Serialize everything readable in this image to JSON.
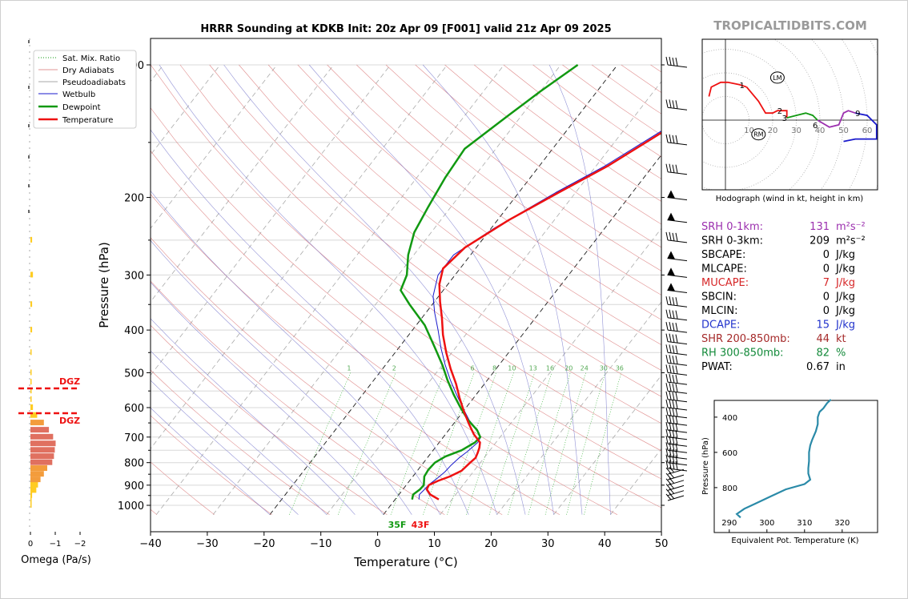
{
  "watermark": "TROPICALTIDBITS.COM",
  "skewt": {
    "title": "HRRR Sounding at KDKB Init: 20z Apr 09 [F001] valid 21z Apr 09 2025",
    "xlabel": "Temperature (°C)",
    "ylabel": "Pressure (hPa)",
    "xticks": [
      "−40",
      "−30",
      "−20",
      "−10",
      "0",
      "10",
      "20",
      "30",
      "40",
      "50"
    ],
    "yticks": [
      "100",
      "200",
      "300",
      "400",
      "500",
      "600",
      "700",
      "800",
      "900",
      "1000"
    ],
    "sfc_temp_label": "43F",
    "sfc_dew_label": "35F",
    "mix_ratio_labels": [
      "1",
      "2",
      "4",
      "6",
      "8",
      "10",
      "13",
      "16",
      "20",
      "24",
      "30",
      "36"
    ],
    "legend": [
      "Sat. Mix. Ratio",
      "Dry Adiabats",
      "Pseudoadiabats",
      "Wetbulb",
      "Dewpoint",
      "Temperature"
    ]
  },
  "omega": {
    "xlabel": "Omega (Pa/s)",
    "xticks": [
      "0",
      "−1",
      "−2"
    ],
    "dgz_label": "DGZ"
  },
  "hodograph": {
    "caption": "Hodograph (wind in kt, height in km)",
    "ring_labels": [
      "10",
      "20",
      "30",
      "40",
      "50",
      "60"
    ],
    "height_labels": [
      "1",
      "2",
      "3",
      "6",
      "9"
    ],
    "lm": "LM",
    "rm": "RM"
  },
  "indices": [
    {
      "label": "SRH 0-1km:",
      "value": "131",
      "unit": "m²s⁻²",
      "color": "#9b2fae"
    },
    {
      "label": "SRH 0-3km:",
      "value": "209",
      "unit": "m²s⁻²",
      "color": "#000000"
    },
    {
      "label": "SBCAPE:",
      "value": "0",
      "unit": "J/kg",
      "color": "#000000"
    },
    {
      "label": "MLCAPE:",
      "value": "0",
      "unit": "J/kg",
      "color": "#000000"
    },
    {
      "label": "MUCAPE:",
      "value": "7",
      "unit": "J/kg",
      "color": "#d62728"
    },
    {
      "label": "SBCIN:",
      "value": "0",
      "unit": "J/kg",
      "color": "#000000"
    },
    {
      "label": "MLCIN:",
      "value": "0",
      "unit": "J/kg",
      "color": "#000000"
    },
    {
      "label": "DCAPE:",
      "value": "15",
      "unit": "J/kg",
      "color": "#2233cc"
    },
    {
      "label": "SHR 200-850mb:",
      "value": "44",
      "unit": "kt",
      "color": "#a52a2a"
    },
    {
      "label": "RH 300-850mb:",
      "value": "82",
      "unit": "%",
      "color": "#138a3a"
    },
    {
      "label": "PWAT:",
      "value": "0.67",
      "unit": "in",
      "color": "#000000"
    }
  ],
  "theta_e_plot": {
    "xlabel": "Equivalent Pot. Temperature (K)",
    "ylabel": "Pressure (hPa)",
    "xticks": [
      "290",
      "300",
      "310",
      "320"
    ],
    "yticks": [
      "400",
      "600",
      "800"
    ]
  },
  "colors": {
    "temperature": "#ee1111",
    "dewpoint": "#119911",
    "wetbulb": "#1a1acc",
    "theta_e": "#2a8aa8"
  },
  "chart_data": [
    {
      "type": "line",
      "title": "HRRR Sounding at KDKB Init: 20z Apr 09 [F001] valid 21z Apr 09 2025",
      "xlabel": "Temperature (°C)",
      "ylabel": "Pressure (hPa)",
      "xlim": [
        -40,
        50
      ],
      "ylim": [
        1050,
        100
      ],
      "y_scale": "log",
      "grid": true,
      "legend_position": "top-left",
      "series": [
        {
          "name": "Temperature",
          "points": [
            [
              7.7,
              970
            ],
            [
              5.5,
              945
            ],
            [
              4.2,
              920
            ],
            [
              4,
              900
            ],
            [
              5,
              880
            ],
            [
              6.5,
              860
            ],
            [
              7.8,
              835
            ],
            [
              8.2,
              800
            ],
            [
              8.5,
              780
            ],
            [
              8.2,
              760
            ],
            [
              7.8,
              740
            ],
            [
              7.2,
              720
            ],
            [
              5,
              690
            ],
            [
              2.5,
              650
            ],
            [
              0,
              610
            ],
            [
              -2.5,
              570
            ],
            [
              -5,
              530
            ],
            [
              -8,
              490
            ],
            [
              -11,
              450
            ],
            [
              -14,
              410
            ],
            [
              -16.5,
              375
            ],
            [
              -19,
              345
            ],
            [
              -21.5,
              315
            ],
            [
              -23,
              290
            ],
            [
              -22,
              260
            ],
            [
              -18,
              225
            ],
            [
              -13,
              195
            ],
            [
              -8,
              170
            ],
            [
              -2.5,
              140
            ],
            [
              2,
              120
            ],
            [
              6,
              100
            ]
          ]
        },
        {
          "name": "Dewpoint",
          "points": [
            [
              3,
              970
            ],
            [
              2.5,
              945
            ],
            [
              3,
              920
            ],
            [
              3.1,
              900
            ],
            [
              2,
              860
            ],
            [
              1.8,
              830
            ],
            [
              2,
              800
            ],
            [
              3,
              775
            ],
            [
              5,
              750
            ],
            [
              6.3,
              720
            ],
            [
              6.5,
              700
            ],
            [
              5,
              675
            ],
            [
              2,
              640
            ],
            [
              -1,
              600
            ],
            [
              -4,
              560
            ],
            [
              -7,
              520
            ],
            [
              -10,
              480
            ],
            [
              -14,
              435
            ],
            [
              -18.5,
              390
            ],
            [
              -24,
              350
            ],
            [
              -27.5,
              325
            ],
            [
              -28.5,
              300
            ],
            [
              -31,
              270
            ],
            [
              -33,
              240
            ],
            [
              -34,
              210
            ],
            [
              -35,
              180
            ],
            [
              -35.5,
              155
            ],
            [
              -33,
              135
            ],
            [
              -30,
              115
            ],
            [
              -27,
              100
            ]
          ]
        },
        {
          "name": "Wetbulb",
          "points": [
            [
              4.2,
              970
            ],
            [
              3.6,
              945
            ],
            [
              3.8,
              920
            ],
            [
              3.9,
              900
            ],
            [
              4.5,
              870
            ],
            [
              5,
              840
            ],
            [
              5.2,
              810
            ],
            [
              5.6,
              780
            ],
            [
              6.2,
              755
            ],
            [
              6.8,
              720
            ],
            [
              6.6,
              700
            ],
            [
              5,
              675
            ],
            [
              2.2,
              640
            ],
            [
              -0.6,
              600
            ],
            [
              -3.5,
              560
            ],
            [
              -6.5,
              520
            ],
            [
              -9.5,
              480
            ],
            [
              -12.5,
              440
            ],
            [
              -15.5,
              400
            ],
            [
              -18.5,
              365
            ],
            [
              -21,
              335
            ],
            [
              -23,
              300
            ],
            [
              -23,
              270
            ],
            [
              -19.5,
              235
            ],
            [
              -13.5,
              195
            ],
            [
              -8.5,
              170
            ],
            [
              -3,
              140
            ],
            [
              1.5,
              120
            ],
            [
              5.5,
              100
            ]
          ]
        }
      ]
    },
    {
      "type": "bar",
      "xlabel": "Omega (Pa/s)",
      "ylabel": "Pressure (hPa)",
      "xlim": [
        0,
        -2
      ],
      "pressure": [
        1000,
        975,
        950,
        925,
        900,
        875,
        850,
        825,
        800,
        775,
        750,
        725,
        700,
        675,
        650,
        625,
        600,
        575,
        550,
        525,
        500,
        450,
        400,
        350,
        300,
        250
      ],
      "values": [
        -0.02,
        -0.05,
        -0.1,
        -0.35,
        -0.45,
        -0.6,
        -0.8,
        -1.0,
        -1.3,
        -1.4,
        -1.45,
        -1.5,
        -1.35,
        -1.1,
        -0.8,
        -0.4,
        -0.15,
        -0.05,
        -0.03,
        -0.02,
        -0.02,
        -0.05,
        -0.1,
        -0.1,
        -0.15,
        -0.1
      ],
      "annotations": [
        {
          "text": "DGZ",
          "pressure": 535
        },
        {
          "text": "DGZ",
          "pressure": 600
        }
      ]
    },
    {
      "type": "line",
      "title": "Hodograph (wind in kt, height in km)",
      "xlim": [
        -10,
        65
      ],
      "ylim": [
        -30,
        35
      ],
      "series": [
        {
          "name": "0-1 km",
          "points": [
            [
              -7,
              10
            ],
            [
              -6,
              14
            ],
            [
              -2,
              16
            ],
            [
              1,
              16
            ],
            [
              6,
              15
            ],
            [
              9,
              14
            ]
          ]
        },
        {
          "name": "1-3 km",
          "points": [
            [
              9,
              14
            ],
            [
              14,
              8
            ],
            [
              17,
              3
            ],
            [
              20,
              3
            ],
            [
              22,
              4
            ],
            [
              26,
              4
            ],
            [
              26,
              1
            ]
          ]
        },
        {
          "name": "3-6 km",
          "points": [
            [
              26,
              1
            ],
            [
              30,
              2
            ],
            [
              34,
              3
            ],
            [
              37,
              2
            ],
            [
              39,
              0
            ]
          ]
        },
        {
          "name": "6-9 km",
          "points": [
            [
              39,
              0
            ],
            [
              44,
              -3
            ],
            [
              48,
              -2
            ],
            [
              50,
              3
            ],
            [
              52,
              4
            ],
            [
              55,
              3
            ]
          ]
        },
        {
          "name": "9+ km",
          "points": [
            [
              55,
              3
            ],
            [
              60,
              2
            ],
            [
              62,
              0
            ],
            [
              64,
              -2
            ],
            [
              64,
              -8
            ],
            [
              55,
              -8
            ],
            [
              50,
              -9
            ]
          ]
        }
      ],
      "markers": [
        {
          "text": "LM",
          "u": 22,
          "v": 18
        },
        {
          "text": "RM",
          "u": 14,
          "v": -6
        }
      ]
    },
    {
      "type": "line",
      "xlabel": "Equivalent Pot. Temperature (K)",
      "ylabel": "Pressure (hPa)",
      "xlim": [
        286,
        325
      ],
      "ylim": [
        1050,
        290
      ],
      "series": [
        {
          "name": "Theta-e",
          "values": [
            [
              293,
              970
            ],
            [
              292,
              950
            ],
            [
              294,
              920
            ],
            [
              297,
              890
            ],
            [
              301,
              850
            ],
            [
              305,
              810
            ],
            [
              310,
              780
            ],
            [
              311.5,
              755
            ],
            [
              311,
              720
            ],
            [
              311,
              690
            ],
            [
              311.2,
              650
            ],
            [
              311.2,
              600
            ],
            [
              311.5,
              560
            ],
            [
              312,
              530
            ],
            [
              313,
              480
            ],
            [
              313.5,
              440
            ],
            [
              313.5,
              400
            ],
            [
              314,
              370
            ],
            [
              315,
              350
            ],
            [
              316,
              320
            ],
            [
              317,
              300
            ]
          ]
        }
      ]
    }
  ]
}
